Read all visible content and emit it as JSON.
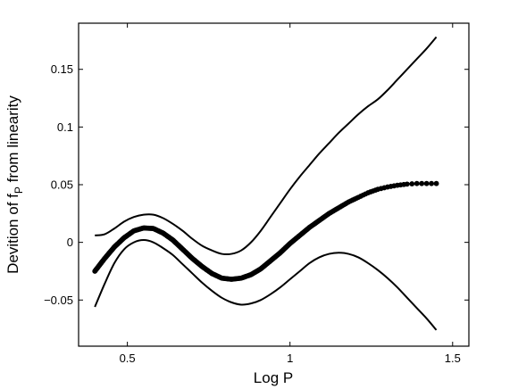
{
  "chart_data": {
    "type": "line",
    "title": "",
    "xlabel": "Log P",
    "ylabel": {
      "prefix": "Devition of f",
      "subscript": "P",
      "suffix": " from linearity"
    },
    "xlim": [
      0.35,
      1.55
    ],
    "ylim": [
      -0.09,
      0.19
    ],
    "xticks": [
      0.5,
      1,
      1.5
    ],
    "xtick_labels": [
      "0.5",
      "1",
      "1.5"
    ],
    "yticks": [
      -0.05,
      0,
      0.05,
      0.1,
      0.15
    ],
    "ytick_labels": [
      "−0.05",
      "0",
      "0.05",
      "0.1",
      "0.15"
    ],
    "grid": false,
    "series": [
      {
        "style": "dots",
        "x": [
          0.4,
          0.43,
          0.46,
          0.49,
          0.52,
          0.55,
          0.58,
          0.61,
          0.64,
          0.67,
          0.7,
          0.73,
          0.76,
          0.79,
          0.82,
          0.85,
          0.88,
          0.91,
          0.94,
          0.97,
          1.0,
          1.03,
          1.06,
          1.09,
          1.12,
          1.15,
          1.18,
          1.21,
          1.24,
          1.27,
          1.3,
          1.33,
          1.36,
          1.39,
          1.42,
          1.45
        ],
        "y": [
          -0.025,
          -0.014,
          -0.004,
          0.004,
          0.01,
          0.0125,
          0.012,
          0.008,
          0.002,
          -0.006,
          -0.014,
          -0.021,
          -0.027,
          -0.031,
          -0.032,
          -0.031,
          -0.028,
          -0.023,
          -0.016,
          -0.009,
          -0.001,
          0.006,
          0.013,
          0.019,
          0.025,
          0.03,
          0.035,
          0.039,
          0.043,
          0.046,
          0.048,
          0.0495,
          0.0505,
          0.051,
          0.051,
          0.051
        ]
      },
      {
        "style": "line",
        "x": [
          0.4,
          0.43,
          0.46,
          0.49,
          0.52,
          0.55,
          0.58,
          0.61,
          0.64,
          0.67,
          0.7,
          0.73,
          0.76,
          0.79,
          0.82,
          0.85,
          0.88,
          0.91,
          0.94,
          0.97,
          1.0,
          1.03,
          1.06,
          1.09,
          1.12,
          1.15,
          1.18,
          1.21,
          1.24,
          1.27,
          1.3,
          1.33,
          1.36,
          1.39,
          1.42,
          1.45
        ],
        "y": [
          0.006,
          0.007,
          0.012,
          0.018,
          0.022,
          0.024,
          0.024,
          0.021,
          0.016,
          0.01,
          0.003,
          -0.003,
          -0.007,
          -0.01,
          -0.01,
          -0.007,
          0.0,
          0.01,
          0.022,
          0.034,
          0.046,
          0.057,
          0.067,
          0.077,
          0.086,
          0.095,
          0.103,
          0.111,
          0.118,
          0.124,
          0.132,
          0.141,
          0.15,
          0.159,
          0.168,
          0.178
        ]
      },
      {
        "style": "line",
        "x": [
          0.4,
          0.43,
          0.46,
          0.49,
          0.52,
          0.55,
          0.58,
          0.61,
          0.64,
          0.67,
          0.7,
          0.73,
          0.76,
          0.79,
          0.82,
          0.85,
          0.88,
          0.91,
          0.94,
          0.97,
          1.0,
          1.03,
          1.06,
          1.09,
          1.12,
          1.15,
          1.18,
          1.21,
          1.24,
          1.27,
          1.3,
          1.33,
          1.36,
          1.39,
          1.42,
          1.45
        ],
        "y": [
          -0.056,
          -0.036,
          -0.018,
          -0.006,
          0.0,
          0.002,
          0.0,
          -0.005,
          -0.011,
          -0.019,
          -0.027,
          -0.035,
          -0.042,
          -0.048,
          -0.052,
          -0.054,
          -0.053,
          -0.05,
          -0.045,
          -0.039,
          -0.032,
          -0.025,
          -0.018,
          -0.013,
          -0.01,
          -0.009,
          -0.01,
          -0.013,
          -0.018,
          -0.024,
          -0.031,
          -0.039,
          -0.048,
          -0.057,
          -0.066,
          -0.076
        ]
      }
    ]
  }
}
